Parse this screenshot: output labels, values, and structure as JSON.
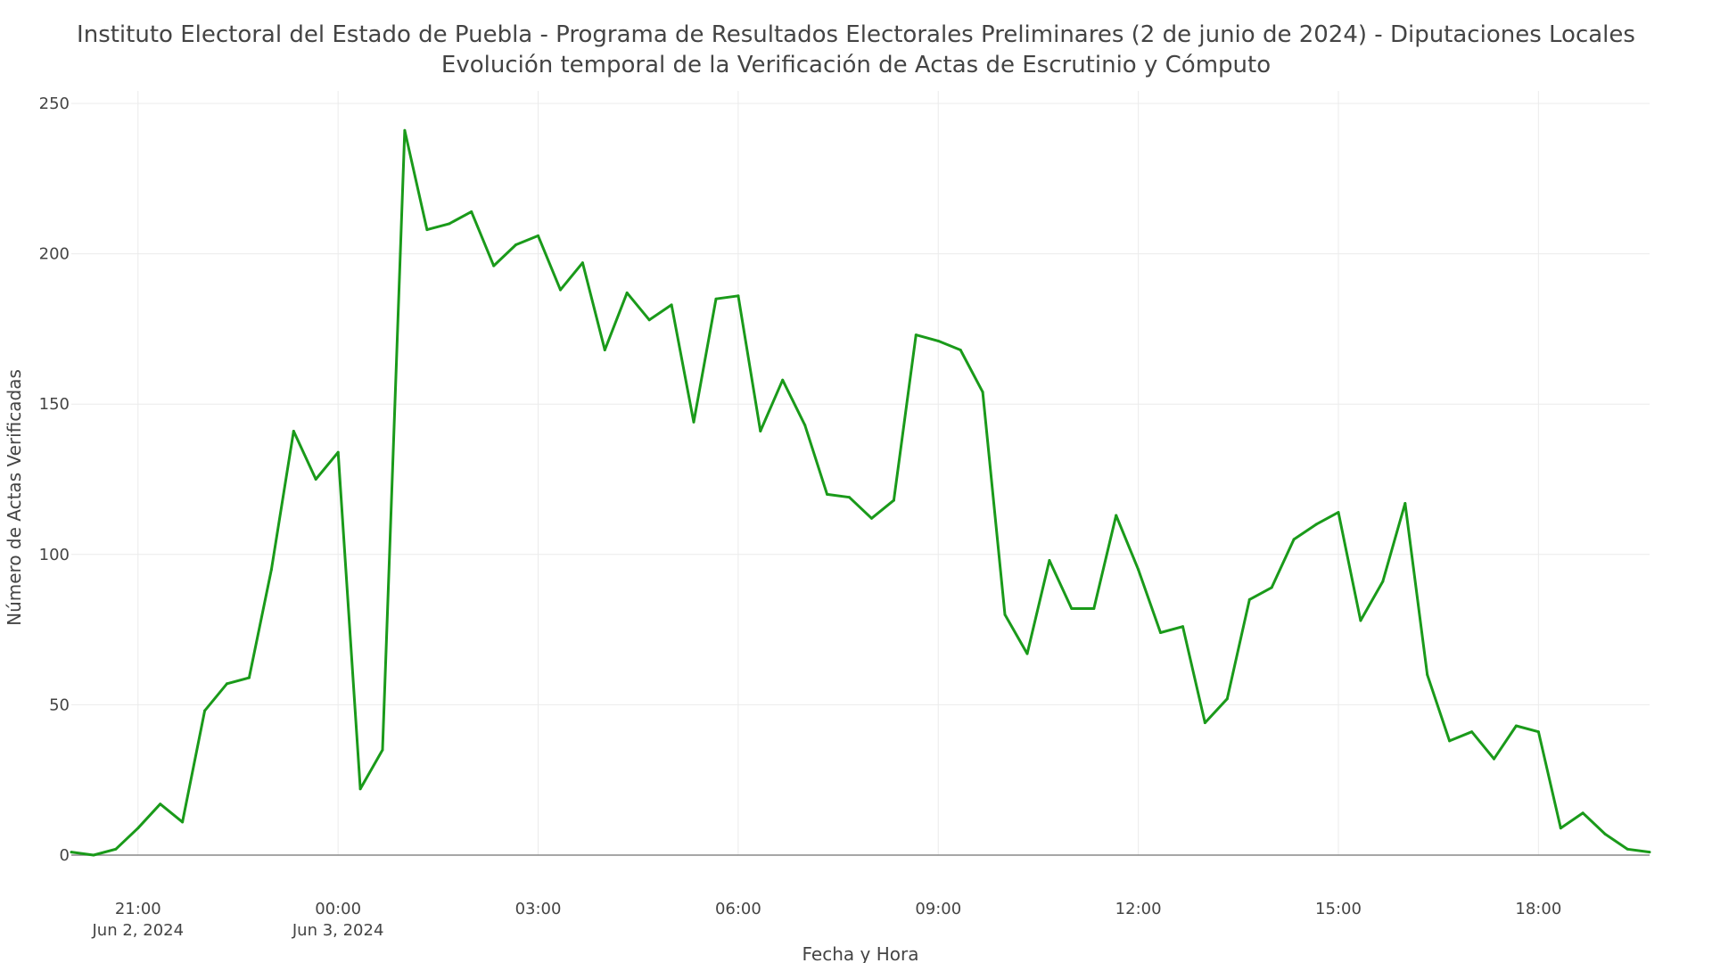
{
  "chart_data": {
    "type": "line",
    "title": "Instituto Electoral del Estado de Puebla - Programa de Resultados Electorales Preliminares (2 de junio de 2024) - Diputaciones Locales",
    "subtitle": "Evolución temporal de la Verificación de Actas de Escrutinio y Cómputo",
    "xlabel": "Fecha y Hora",
    "ylabel": "Número de Actas Verificadas",
    "ylim": [
      0,
      250
    ],
    "xlim": [
      "2024-06-02 20:00",
      "2024-06-03 19:40"
    ],
    "grid": true,
    "line_color": "#1a9a1a",
    "y_ticks": [
      0,
      50,
      100,
      150,
      200,
      250
    ],
    "x_ticks": [
      {
        "t": "2024-06-02 21:00",
        "label": "21:00",
        "sublabel": "Jun 2, 2024"
      },
      {
        "t": "2024-06-03 00:00",
        "label": "00:00",
        "sublabel": "Jun 3, 2024"
      },
      {
        "t": "2024-06-03 03:00",
        "label": "03:00",
        "sublabel": ""
      },
      {
        "t": "2024-06-03 06:00",
        "label": "06:00",
        "sublabel": ""
      },
      {
        "t": "2024-06-03 09:00",
        "label": "09:00",
        "sublabel": ""
      },
      {
        "t": "2024-06-03 12:00",
        "label": "12:00",
        "sublabel": ""
      },
      {
        "t": "2024-06-03 15:00",
        "label": "15:00",
        "sublabel": ""
      },
      {
        "t": "2024-06-03 18:00",
        "label": "18:00",
        "sublabel": ""
      }
    ],
    "x": [
      "2024-06-02 20:00",
      "2024-06-02 20:20",
      "2024-06-02 20:40",
      "2024-06-02 21:00",
      "2024-06-02 21:20",
      "2024-06-02 21:40",
      "2024-06-02 22:00",
      "2024-06-02 22:20",
      "2024-06-02 22:40",
      "2024-06-02 23:00",
      "2024-06-02 23:20",
      "2024-06-02 23:40",
      "2024-06-03 00:00",
      "2024-06-03 00:20",
      "2024-06-03 00:40",
      "2024-06-03 01:00",
      "2024-06-03 01:20",
      "2024-06-03 01:40",
      "2024-06-03 02:00",
      "2024-06-03 02:20",
      "2024-06-03 02:40",
      "2024-06-03 03:00",
      "2024-06-03 03:20",
      "2024-06-03 03:40",
      "2024-06-03 04:00",
      "2024-06-03 04:20",
      "2024-06-03 04:40",
      "2024-06-03 05:00",
      "2024-06-03 05:20",
      "2024-06-03 05:40",
      "2024-06-03 06:00",
      "2024-06-03 06:20",
      "2024-06-03 06:40",
      "2024-06-03 07:00",
      "2024-06-03 07:20",
      "2024-06-03 07:40",
      "2024-06-03 08:00",
      "2024-06-03 08:20",
      "2024-06-03 08:40",
      "2024-06-03 09:00",
      "2024-06-03 09:20",
      "2024-06-03 09:40",
      "2024-06-03 10:00",
      "2024-06-03 10:20",
      "2024-06-03 10:40",
      "2024-06-03 11:00",
      "2024-06-03 11:20",
      "2024-06-03 11:40",
      "2024-06-03 12:00",
      "2024-06-03 12:20",
      "2024-06-03 12:40",
      "2024-06-03 13:00",
      "2024-06-03 13:20",
      "2024-06-03 13:40",
      "2024-06-03 14:00",
      "2024-06-03 14:20",
      "2024-06-03 14:40",
      "2024-06-03 15:00",
      "2024-06-03 15:20",
      "2024-06-03 15:40",
      "2024-06-03 16:00",
      "2024-06-03 16:20",
      "2024-06-03 16:40",
      "2024-06-03 17:00",
      "2024-06-03 17:20",
      "2024-06-03 17:40",
      "2024-06-03 18:00",
      "2024-06-03 18:20",
      "2024-06-03 18:40",
      "2024-06-03 19:00",
      "2024-06-03 19:20",
      "2024-06-03 19:40"
    ],
    "series": [
      {
        "values": [
          1,
          0,
          2,
          9,
          17,
          11,
          48,
          57,
          59,
          95,
          141,
          125,
          134,
          22,
          35,
          241,
          208,
          210,
          214,
          196,
          203,
          206,
          188,
          197,
          168,
          187,
          178,
          183,
          144,
          185,
          186,
          141,
          158,
          143,
          120,
          119,
          112,
          118,
          173,
          171,
          168,
          154,
          80,
          67,
          98,
          82,
          82,
          113,
          95,
          74,
          76,
          44,
          52,
          85,
          89,
          105,
          110,
          114,
          78,
          91,
          117,
          60,
          38,
          41,
          32,
          43,
          41,
          9,
          14,
          7,
          2,
          1
        ]
      }
    ]
  }
}
